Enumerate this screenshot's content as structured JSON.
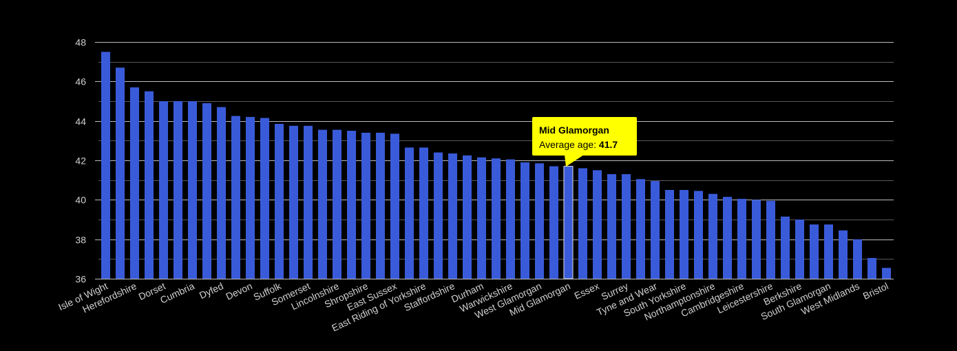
{
  "chart_data": {
    "type": "bar",
    "title": "",
    "xlabel": "",
    "ylabel": "",
    "ylim": [
      36,
      48
    ],
    "yticks": [
      36,
      38,
      40,
      42,
      44,
      46,
      48
    ],
    "grid": true,
    "bar_color": "#3a5bd9",
    "highlight_color": "#ffff00",
    "categories": [
      "Isle of Wight",
      "",
      "Herefordshire",
      "",
      "Dorset",
      "",
      "Cumbria",
      "",
      "Dyfed",
      "",
      "Devon",
      "",
      "Suffolk",
      "",
      "Somerset",
      "",
      "Lincolnshire",
      "",
      "Shropshire",
      "",
      "East Sussex",
      "",
      "East Riding of Yorkshire",
      "",
      "Staffordshire",
      "",
      "Durham",
      "",
      "Warwickshire",
      "",
      "West Glamorgan",
      "",
      "Mid Glamorgan",
      "",
      "Essex",
      "",
      "Surrey",
      "",
      "Tyne and Wear",
      "",
      "South Yorkshire",
      "",
      "Northamptonshire",
      "",
      "Cambridgeshire",
      "",
      "Leicestershire",
      "",
      "Berkshire",
      "",
      "South Glamorgan",
      "",
      "West Midlands",
      "",
      "Bristol"
    ],
    "values": [
      47.5,
      46.7,
      45.7,
      45.5,
      45.0,
      45.0,
      45.0,
      44.9,
      44.7,
      44.25,
      44.2,
      44.15,
      43.85,
      43.75,
      43.75,
      43.55,
      43.55,
      43.5,
      43.4,
      43.4,
      43.35,
      42.65,
      42.65,
      42.4,
      42.35,
      42.25,
      42.15,
      42.1,
      42.05,
      41.9,
      41.85,
      41.7,
      41.7,
      41.6,
      41.5,
      41.3,
      41.3,
      41.05,
      40.95,
      40.5,
      40.5,
      40.45,
      40.3,
      40.15,
      40.05,
      40.0,
      39.95,
      39.15,
      39.0,
      38.75,
      38.75,
      38.45,
      38.0,
      37.05,
      36.55
    ],
    "highlight_index": 32
  },
  "tooltip": {
    "name": "Mid Glamorgan",
    "label": "Average age: ",
    "value": "41.7"
  }
}
